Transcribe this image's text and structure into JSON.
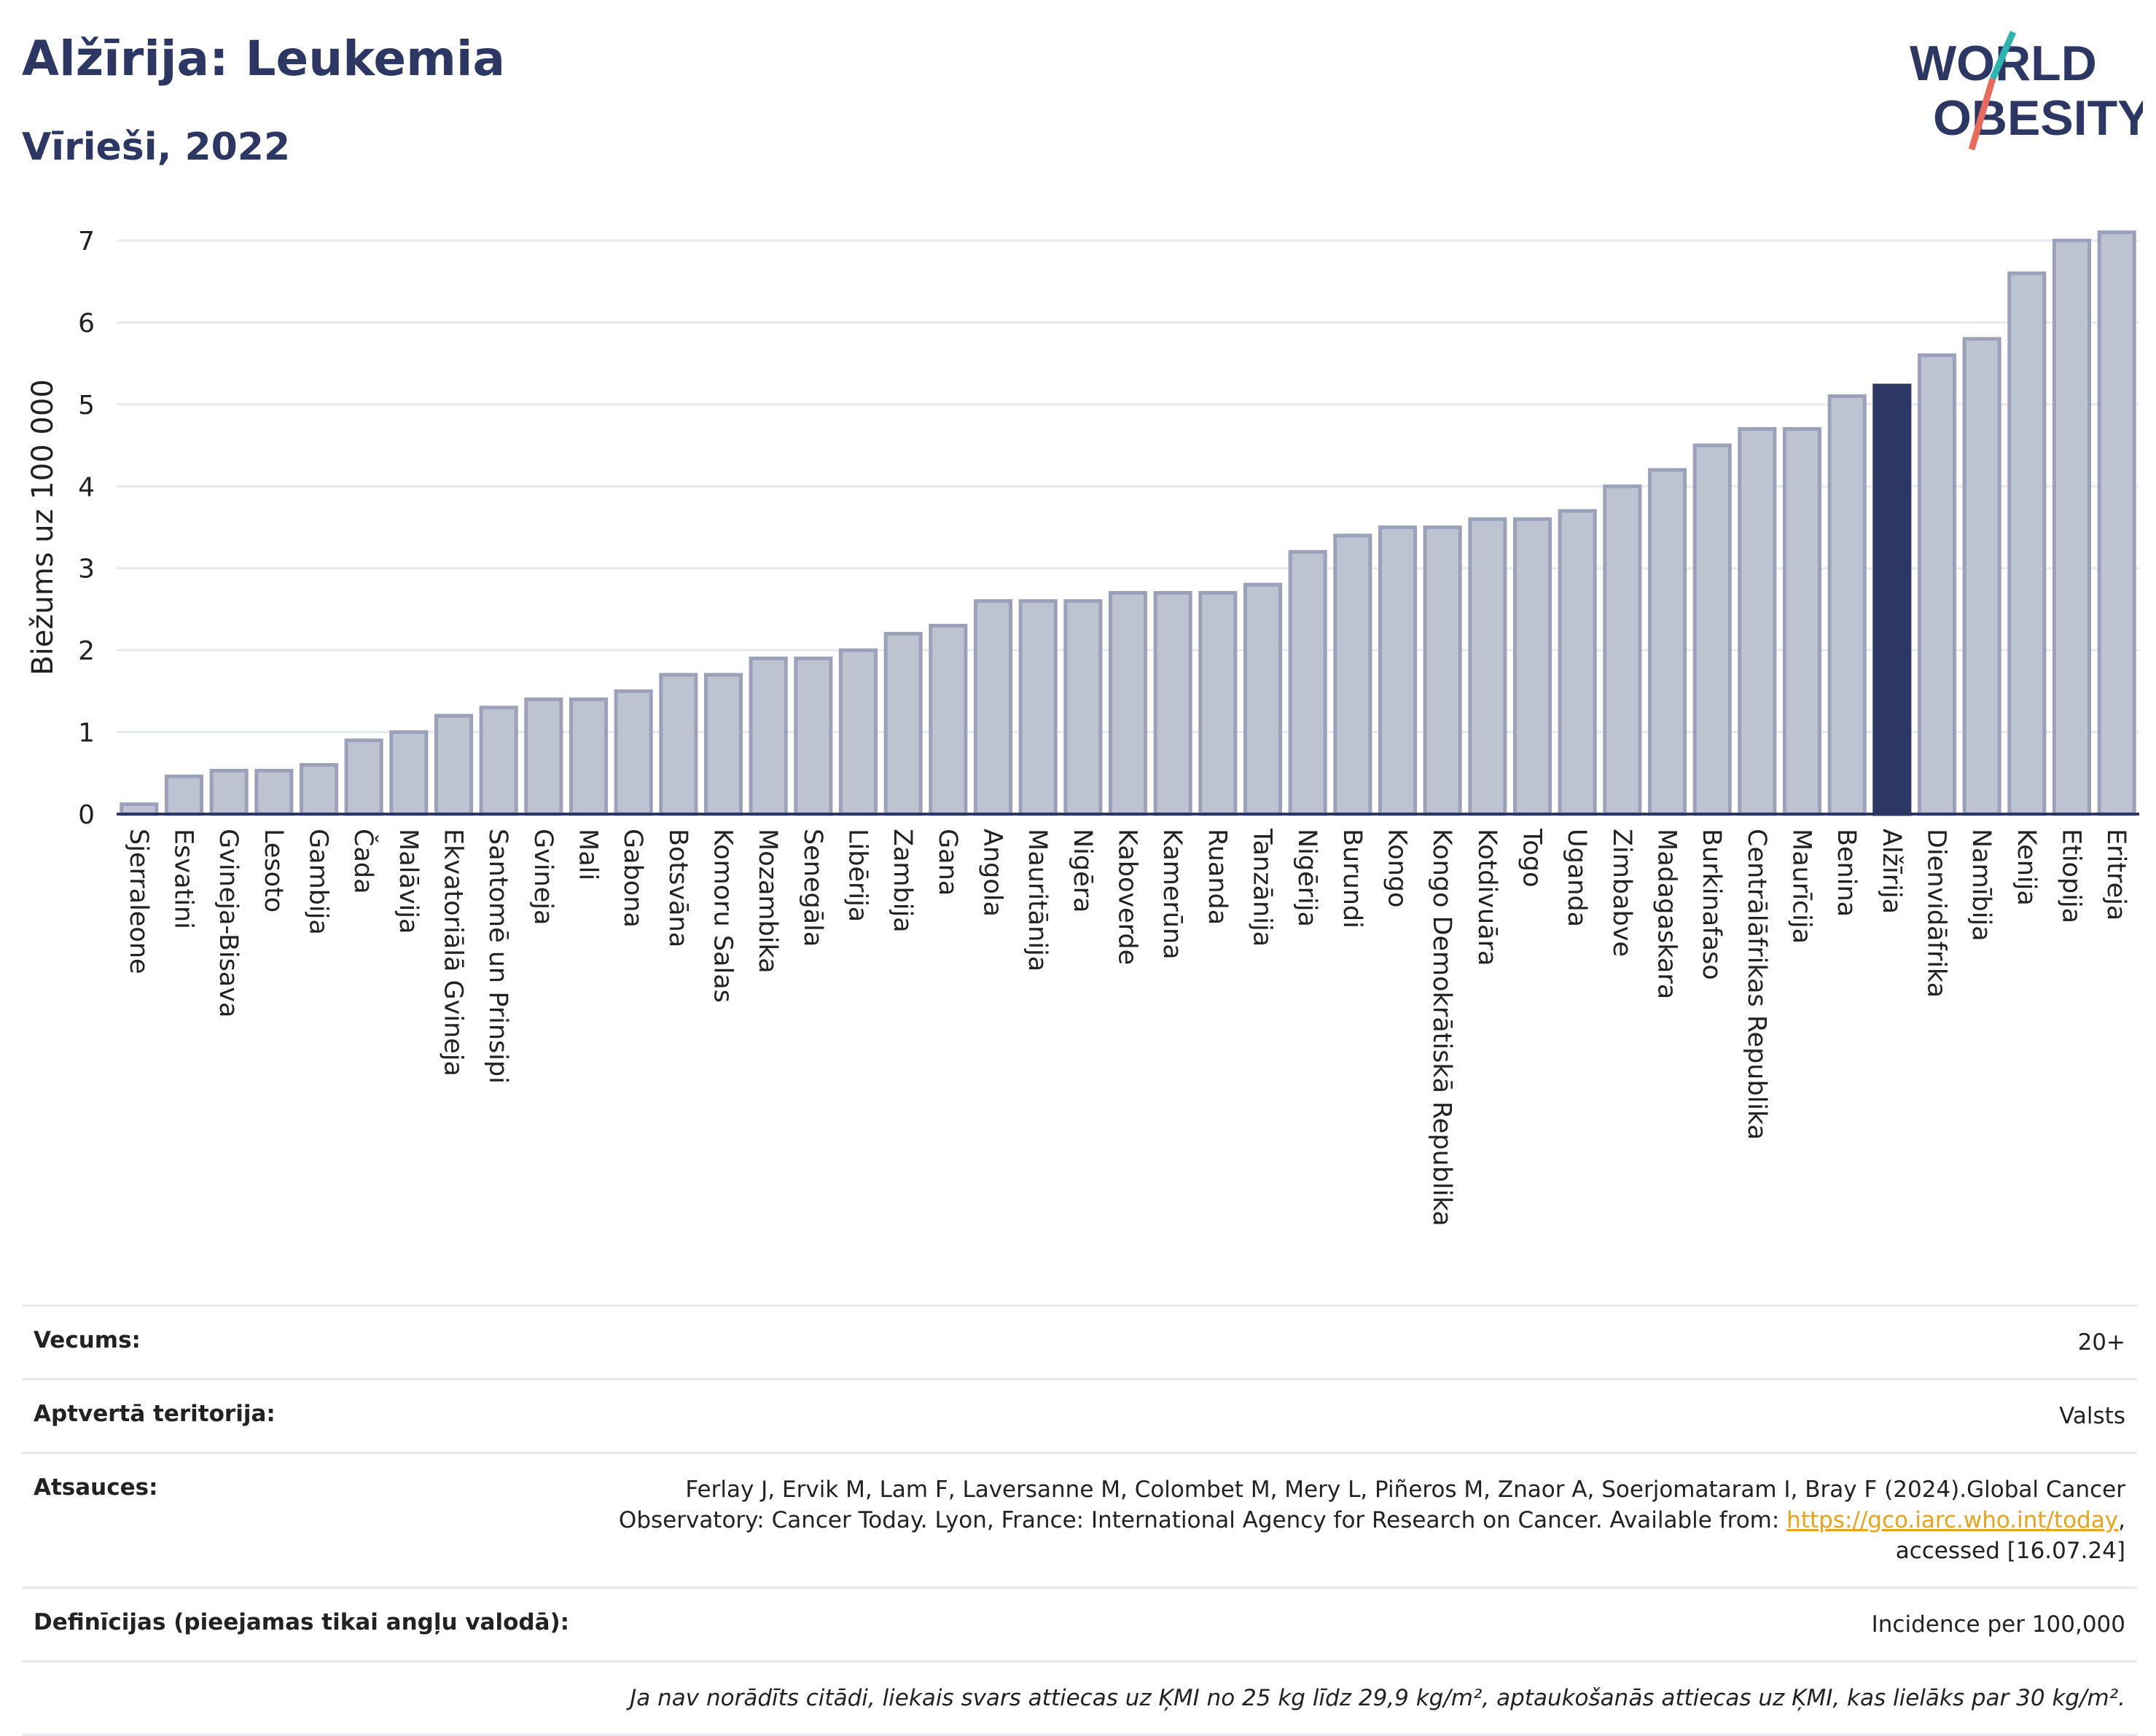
{
  "header": {
    "title": "Alžīrija: Leukemia",
    "subtitle": "Vīrieši, 2022"
  },
  "logo": {
    "line1": "WORLD",
    "line2": "OBESITY"
  },
  "colors": {
    "highlight": "#2c3863",
    "bar_fill": "#bec3d2",
    "bar_stroke": "#9aa1b9",
    "logo_teal": "#2fb5b0",
    "logo_coral": "#e86a5c"
  },
  "chart_data": {
    "type": "bar",
    "ylabel": "Biežums uz 100 000",
    "ylim": [
      0,
      7.35
    ],
    "yticks": [
      0,
      1,
      2,
      3,
      4,
      5,
      6,
      7
    ],
    "grid": true,
    "highlight": "Alžīrija",
    "categories": [
      "Sjerraleone",
      "Esvatini",
      "Gvineja-Bisava",
      "Lesoto",
      "Gambija",
      "Čada",
      "Malāvija",
      "Ekvatoriālā Gvineja",
      "Santomē un Prinsipi",
      "Gvineja",
      "Mali",
      "Gabona",
      "Botsvāna",
      "Komoru Salas",
      "Mozambika",
      "Senegāla",
      "Libērija",
      "Zambija",
      "Gana",
      "Angola",
      "Mauritānija",
      "Nigēra",
      "Kaboverde",
      "Kamerūna",
      "Ruanda",
      "Tanzānija",
      "Nigērija",
      "Burundi",
      "Kongo",
      "Kongo Demokrātiskā Republika",
      "Kotdivuāra",
      "Togo",
      "Uganda",
      "Zimbabve",
      "Madagaskara",
      "Burkinafaso",
      "Centrālāfrikas Republika",
      "Maurīcija",
      "Benina",
      "Alžīrija",
      "Dienvidāfrika",
      "Namībija",
      "Kenija",
      "Etiopija",
      "Eritreja"
    ],
    "values": [
      0.12,
      0.46,
      0.53,
      0.53,
      0.6,
      0.9,
      1.0,
      1.2,
      1.3,
      1.4,
      1.4,
      1.5,
      1.7,
      1.7,
      1.9,
      1.9,
      2.0,
      2.2,
      2.3,
      2.6,
      2.6,
      2.6,
      2.7,
      2.7,
      2.7,
      2.8,
      3.2,
      3.4,
      3.5,
      3.5,
      3.6,
      3.6,
      3.7,
      4.0,
      4.2,
      4.5,
      4.7,
      4.7,
      5.1,
      5.23,
      5.6,
      5.8,
      6.6,
      7.0,
      7.1
    ]
  },
  "info": {
    "age_label": "Vecums:",
    "age_value": "20+",
    "territory_label": "Aptvertā teritorija:",
    "territory_value": "Valsts",
    "refs_label": "Atsauces:",
    "refs_line1": "Ferlay J, Ervik M, Lam F, Laversanne M, Colombet M, Mery L, Piñeros M, Znaor A, Soerjomataram I, Bray F (2024).Global Cancer",
    "refs_line2": "Observatory: Cancer Today. Lyon, France: International Agency for Research on Cancer. Available from: ",
    "refs_link": "https://gco.iarc.who.int/today",
    "refs_after_link": ",",
    "refs_line3": "accessed [16.07.24]",
    "defs_label": "Definīcijas (pieejamas tikai angļu valodā):",
    "defs_value": "Incidence per 100,000",
    "note": "Ja nav norādīts citādi, liekais svars attiecas uz ĶMI no 25 kg līdz 29,9 kg/m², aptaukošanās attiecas uz ĶMI, kas lielāks par 30 kg/m²."
  }
}
